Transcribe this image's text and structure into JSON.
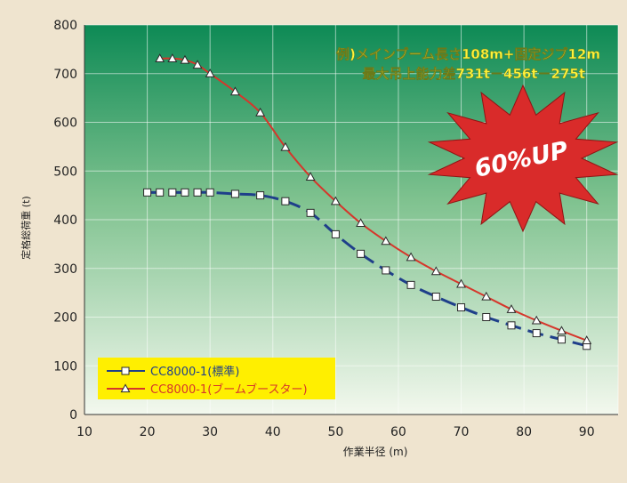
{
  "chart_data": {
    "type": "line",
    "xlabel": "作業半径 (m)",
    "ylabel": "定格総荷重 (t)",
    "xlim": [
      10,
      95
    ],
    "ylim": [
      0,
      800
    ],
    "x_ticks": [
      10,
      20,
      30,
      40,
      50,
      60,
      70,
      80,
      90
    ],
    "y_ticks": [
      0,
      100,
      200,
      300,
      400,
      500,
      600,
      700,
      800
    ],
    "grid": true,
    "legend_position": "bottom-left",
    "annotation_lines": [
      "例)メインブーム長さ108m+固定ジブ12m",
      "最大吊上能力差731t－456t－275t"
    ],
    "burst_label": "60%UP",
    "series": [
      {
        "name": "CC8000-1(標準)",
        "color": "#1f3f8a",
        "line_style": "dashed",
        "marker": "square",
        "x": [
          20,
          22,
          24,
          26,
          28,
          30,
          34,
          38,
          42,
          46,
          50,
          54,
          58,
          62,
          66,
          70,
          74,
          78,
          82,
          86,
          90
        ],
        "values": [
          456,
          456,
          456,
          456,
          456,
          456,
          453,
          450,
          438,
          414,
          370,
          330,
          296,
          266,
          242,
          220,
          200,
          183,
          167,
          154,
          141
        ]
      },
      {
        "name": "CC8000-1(ブームブースター)",
        "color": "#d6362b",
        "line_style": "solid",
        "marker": "triangle",
        "x": [
          22,
          24,
          26,
          28,
          30,
          34,
          38,
          42,
          46,
          50,
          54,
          58,
          62,
          66,
          70,
          74,
          78,
          82,
          86,
          90
        ],
        "values": [
          731,
          731,
          728,
          718,
          700,
          663,
          620,
          549,
          488,
          438,
          393,
          356,
          323,
          294,
          268,
          242,
          216,
          193,
          172,
          152
        ]
      }
    ]
  },
  "colors": {
    "plot_top": "#0d8a55",
    "plot_mid": "#7fc28f",
    "plot_bottom": "#f3f8ee",
    "burst": "#d92b2a",
    "annotation": "#fff23a",
    "legend_bg": "#ffef00"
  }
}
